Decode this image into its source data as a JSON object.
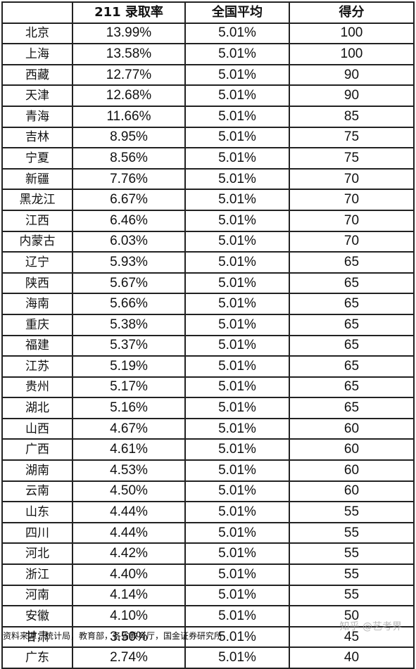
{
  "table": {
    "headers": [
      "",
      "211 录取率",
      "全国平均",
      "得分"
    ],
    "rows": [
      [
        "北京",
        "13.99%",
        "5.01%",
        "100"
      ],
      [
        "上海",
        "13.58%",
        "5.01%",
        "100"
      ],
      [
        "西藏",
        "12.77%",
        "5.01%",
        "90"
      ],
      [
        "天津",
        "12.68%",
        "5.01%",
        "90"
      ],
      [
        "青海",
        "11.66%",
        "5.01%",
        "85"
      ],
      [
        "吉林",
        "8.95%",
        "5.01%",
        "75"
      ],
      [
        "宁夏",
        "8.56%",
        "5.01%",
        "75"
      ],
      [
        "新疆",
        "7.76%",
        "5.01%",
        "70"
      ],
      [
        "黑龙江",
        "6.67%",
        "5.01%",
        "70"
      ],
      [
        "江西",
        "6.46%",
        "5.01%",
        "70"
      ],
      [
        "内蒙古",
        "6.03%",
        "5.01%",
        "70"
      ],
      [
        "辽宁",
        "5.93%",
        "5.01%",
        "65"
      ],
      [
        "陕西",
        "5.67%",
        "5.01%",
        "65"
      ],
      [
        "海南",
        "5.66%",
        "5.01%",
        "65"
      ],
      [
        "重庆",
        "5.38%",
        "5.01%",
        "65"
      ],
      [
        "福建",
        "5.37%",
        "5.01%",
        "65"
      ],
      [
        "江苏",
        "5.19%",
        "5.01%",
        "65"
      ],
      [
        "贵州",
        "5.17%",
        "5.01%",
        "65"
      ],
      [
        "湖北",
        "5.16%",
        "5.01%",
        "65"
      ],
      [
        "山西",
        "4.67%",
        "5.01%",
        "60"
      ],
      [
        "广西",
        "4.61%",
        "5.01%",
        "60"
      ],
      [
        "湖南",
        "4.53%",
        "5.01%",
        "60"
      ],
      [
        "云南",
        "4.50%",
        "5.01%",
        "60"
      ],
      [
        "山东",
        "4.44%",
        "5.01%",
        "55"
      ],
      [
        "四川",
        "4.44%",
        "5.01%",
        "55"
      ],
      [
        "河北",
        "4.42%",
        "5.01%",
        "55"
      ],
      [
        "浙江",
        "4.40%",
        "5.01%",
        "55"
      ],
      [
        "河南",
        "4.14%",
        "5.01%",
        "55"
      ],
      [
        "安徽",
        "4.10%",
        "5.01%",
        "50"
      ],
      [
        "甘肃",
        "3.50%",
        "5.01%",
        "45"
      ],
      [
        "广东",
        "2.74%",
        "5.01%",
        "40"
      ]
    ]
  },
  "footer": {
    "source": "资料来源：统计局，教育部，各省教育厅，国金证券研究所",
    "watermark": "知乎 @艺考界"
  }
}
